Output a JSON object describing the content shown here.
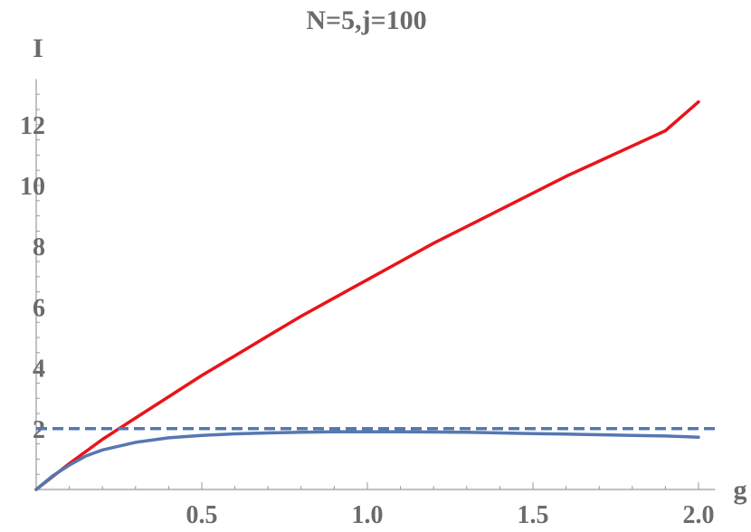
{
  "chart_data": {
    "type": "line",
    "title": "N=5,j=100",
    "xlabel": "g",
    "ylabel": "I",
    "xlim": [
      0,
      2.05
    ],
    "ylim": [
      0,
      13.5
    ],
    "x_ticks": [
      0.5,
      1.0,
      1.5,
      2.0
    ],
    "x_tick_labels": [
      "0.5",
      "1.0",
      "1.5",
      "2.0"
    ],
    "y_ticks": [
      2,
      4,
      6,
      8,
      10,
      12
    ],
    "y_tick_labels": [
      "2",
      "4",
      "6",
      "8",
      "10",
      "12"
    ],
    "grid": false,
    "series": [
      {
        "color": "#e8141a",
        "style": "solid",
        "x": [
          0,
          0.1,
          0.2,
          0.25,
          0.3,
          0.4,
          0.5,
          0.6,
          0.7,
          0.8,
          0.9,
          1.0,
          1.1,
          1.2,
          1.3,
          1.4,
          1.5,
          1.6,
          1.7,
          1.8,
          1.9,
          2.0
        ],
        "y": [
          0,
          0.85,
          1.65,
          2.0,
          2.35,
          3.05,
          3.75,
          4.4,
          5.05,
          5.7,
          6.3,
          6.9,
          7.5,
          8.1,
          8.65,
          9.2,
          9.75,
          10.3,
          10.8,
          11.3,
          11.8,
          12.75
        ]
      },
      {
        "color": "#5677b0",
        "style": "solid",
        "x": [
          0,
          0.05,
          0.1,
          0.15,
          0.2,
          0.3,
          0.4,
          0.5,
          0.6,
          0.7,
          0.8,
          0.9,
          1.0,
          1.1,
          1.2,
          1.3,
          1.4,
          1.5,
          1.6,
          1.7,
          1.8,
          1.9,
          2.0
        ],
        "y": [
          0,
          0.45,
          0.8,
          1.1,
          1.3,
          1.55,
          1.7,
          1.78,
          1.83,
          1.86,
          1.88,
          1.9,
          1.9,
          1.9,
          1.89,
          1.88,
          1.86,
          1.84,
          1.82,
          1.8,
          1.78,
          1.76,
          1.72
        ]
      },
      {
        "color": "#5677b0",
        "style": "dashed",
        "x": [
          0,
          2.05
        ],
        "y": [
          2,
          2
        ]
      }
    ]
  }
}
